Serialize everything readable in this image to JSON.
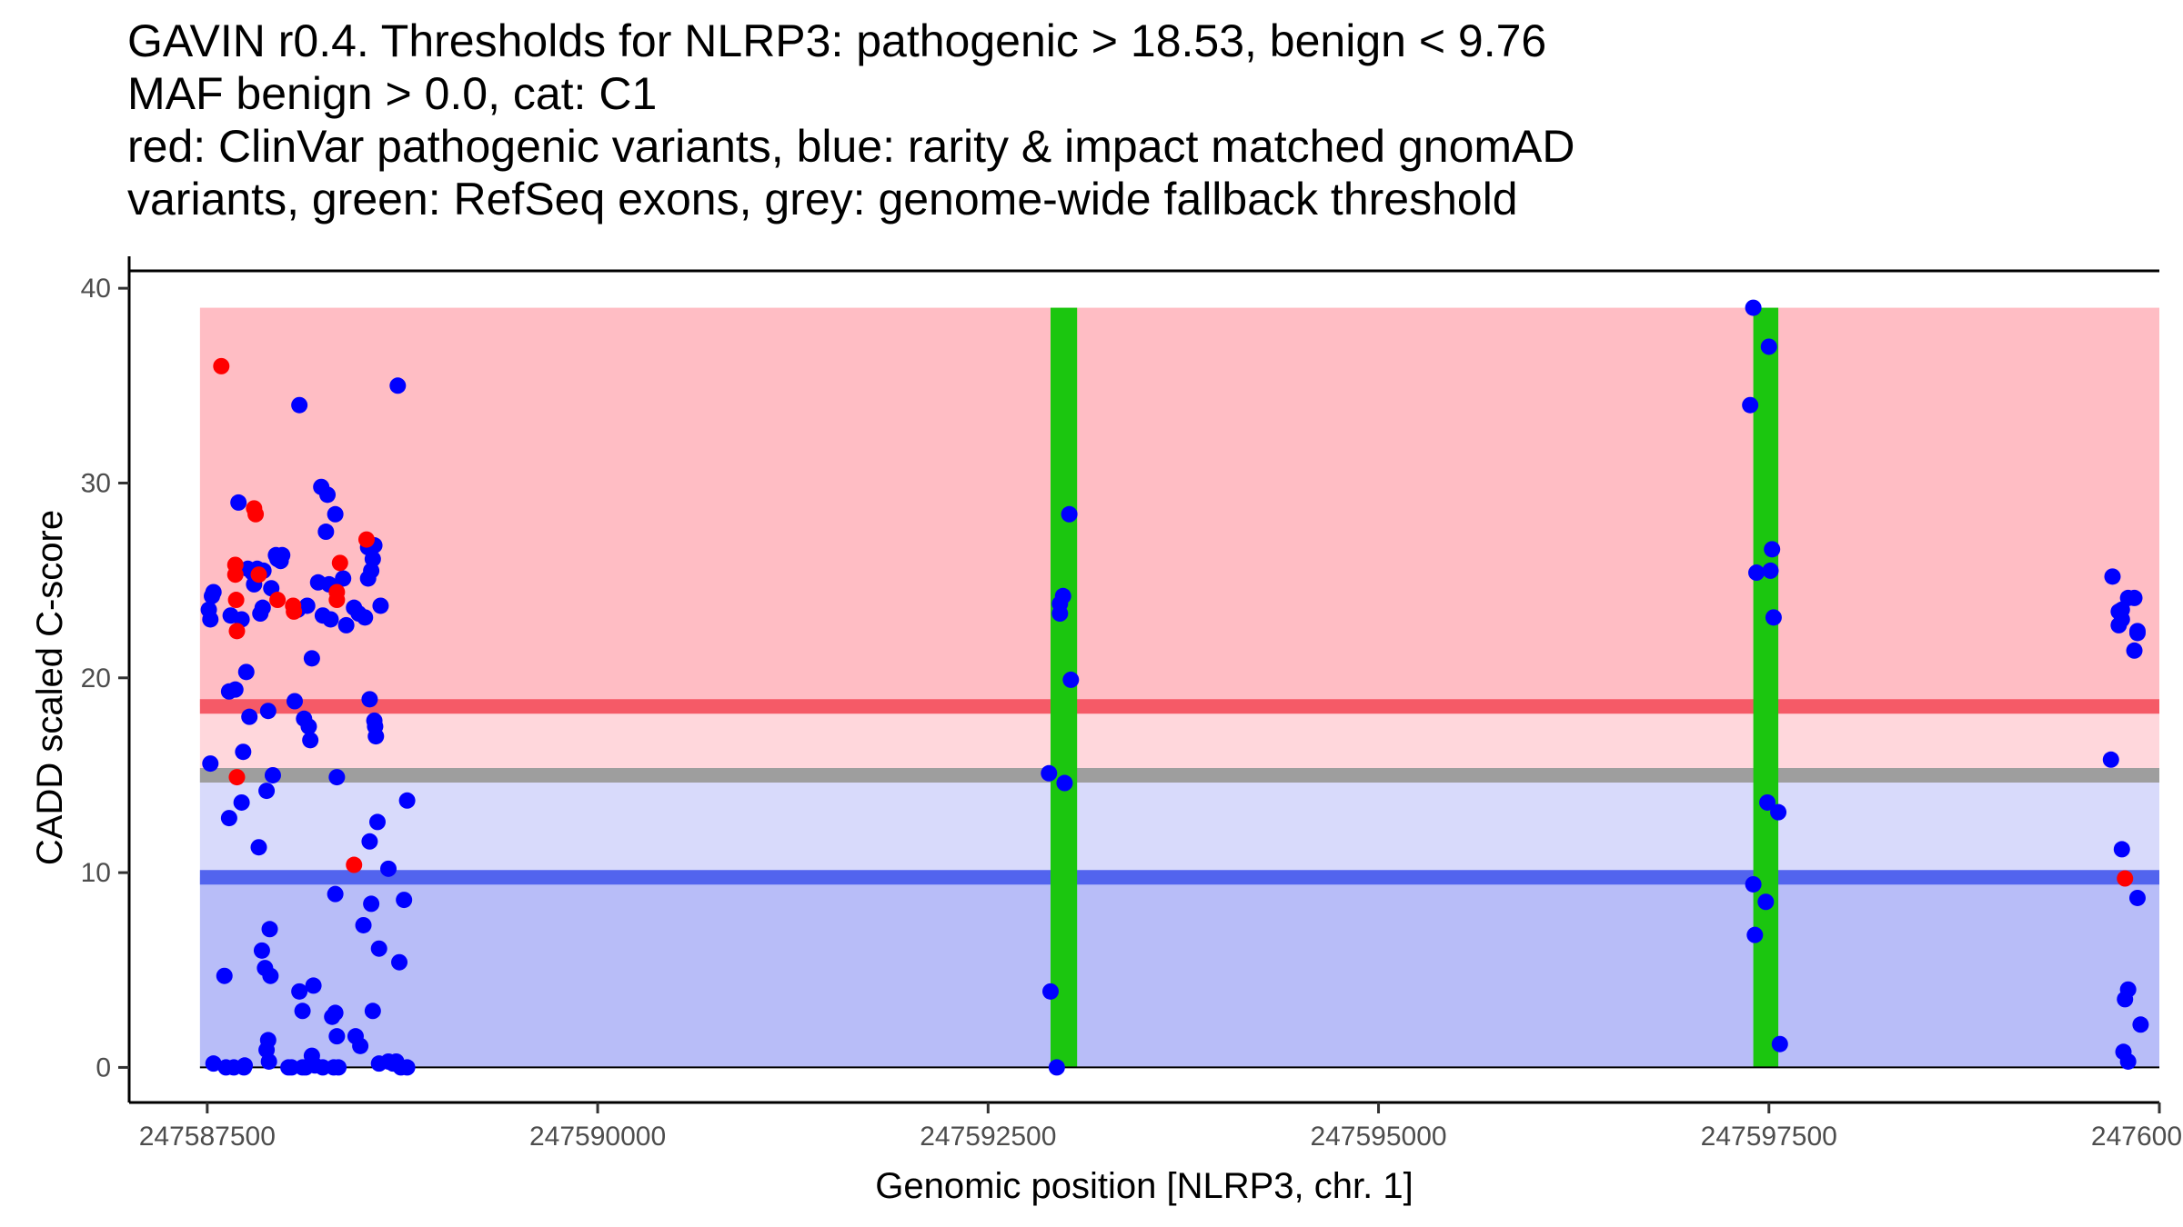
{
  "chart_data": {
    "type": "scatter",
    "title_lines": [
      "GAVIN r0.4. Thresholds for NLRP3: pathogenic > 18.53, benign < 9.76",
      "MAF benign > 0.0, cat: C1",
      "red: ClinVar pathogenic variants, blue: rarity & impact matched gnomAD",
      "variants, green: RefSeq exons, grey: genome-wide fallback threshold"
    ],
    "xlabel": "Genomic position [NLRP3, chr. 1]",
    "ylabel": "CADD scaled C-score",
    "xlim": [
      247587000,
      247600000
    ],
    "ylim": [
      -1.8,
      40.8
    ],
    "x_ticks": [
      247587500,
      247590000,
      247592500,
      247595000,
      247597500,
      247600000
    ],
    "x_tick_labels": [
      "247587500",
      "247590000",
      "247592500",
      "247595000",
      "247597500",
      "247600000"
    ],
    "y_ticks": [
      0,
      10,
      20,
      30,
      40
    ],
    "y_tick_labels": [
      "0",
      "10",
      "20",
      "30",
      "40"
    ],
    "thresholds": {
      "pathogenic": 18.53,
      "benign": 9.76,
      "fallback": 15.0,
      "maf_benign": "0.0",
      "category": "C1"
    },
    "regions": [
      {
        "name": "pathogenic-zone",
        "y0": 18.53,
        "y1": 39.0,
        "color": "#ffbdc4"
      },
      {
        "name": "fallback-pathogenic-zone",
        "y0": 15.0,
        "y1": 18.53,
        "color": "#ffd7dc"
      },
      {
        "name": "fallback-benign-zone",
        "y0": 9.76,
        "y1": 15.0,
        "color": "#d8dafb"
      },
      {
        "name": "benign-zone",
        "y0": 0.0,
        "y1": 9.76,
        "color": "#b8bdf8"
      }
    ],
    "threshold_lines": [
      {
        "name": "pathogenic-threshold-line",
        "y": 18.53,
        "color": "#f55a67"
      },
      {
        "name": "fallback-threshold-line",
        "y": 15.0,
        "color": "#9e9e9e"
      },
      {
        "name": "benign-threshold-line",
        "y": 9.76,
        "color": "#5264ee"
      }
    ],
    "exons": [
      {
        "start": 247592900,
        "end": 247593070
      },
      {
        "start": 247597400,
        "end": 247597560
      }
    ],
    "colors": {
      "pathogenic": "#ff0000",
      "population": "#0000ff",
      "exon": "#1bc60f"
    },
    "series": [
      {
        "name": "ClinVar pathogenic variants",
        "color_key": "pathogenic",
        "points": [
          [
            247587590,
            36.0
          ],
          [
            247587680,
            25.8
          ],
          [
            247587680,
            25.3
          ],
          [
            247587685,
            24.0
          ],
          [
            247587690,
            22.4
          ],
          [
            247587690,
            14.9
          ],
          [
            247587800,
            28.7
          ],
          [
            247587810,
            28.4
          ],
          [
            247587830,
            25.3
          ],
          [
            247587950,
            24.0
          ],
          [
            247588050,
            23.7
          ],
          [
            247588055,
            23.4
          ],
          [
            247588350,
            25.9
          ],
          [
            247588330,
            24.4
          ],
          [
            247588330,
            24.0
          ],
          [
            247588440,
            10.4
          ],
          [
            247588520,
            27.1
          ],
          [
            247599780,
            9.7
          ]
        ]
      },
      {
        "name": "gnomAD rarity & impact matched variants",
        "color_key": "population",
        "points": [
          [
            247587510,
            23.5
          ],
          [
            247587520,
            23.0
          ],
          [
            247587530,
            24.2
          ],
          [
            247587540,
            24.4
          ],
          [
            247587520,
            15.6
          ],
          [
            247587540,
            0.2
          ],
          [
            247587610,
            4.7
          ],
          [
            247587620,
            0.0
          ],
          [
            247587640,
            12.8
          ],
          [
            247587640,
            19.3
          ],
          [
            247587650,
            23.2
          ],
          [
            247587670,
            0.0
          ],
          [
            247587680,
            19.4
          ],
          [
            247587700,
            29.0
          ],
          [
            247587720,
            13.6
          ],
          [
            247587720,
            23.0
          ],
          [
            247587730,
            16.2
          ],
          [
            247587735,
            0.0
          ],
          [
            247587740,
            0.1
          ],
          [
            247587750,
            20.3
          ],
          [
            247587760,
            25.6
          ],
          [
            247587770,
            18.0
          ],
          [
            247587790,
            25.4
          ],
          [
            247587800,
            24.8
          ],
          [
            247587820,
            25.6
          ],
          [
            247587830,
            11.3
          ],
          [
            247587840,
            23.3
          ],
          [
            247587850,
            6.0
          ],
          [
            247587855,
            23.6
          ],
          [
            247587860,
            25.5
          ],
          [
            247587870,
            5.1
          ],
          [
            247587880,
            14.2
          ],
          [
            247587880,
            0.9
          ],
          [
            247587890,
            1.4
          ],
          [
            247587890,
            18.3
          ],
          [
            247587895,
            0.3
          ],
          [
            247587900,
            7.1
          ],
          [
            247587905,
            4.7
          ],
          [
            247587910,
            24.6
          ],
          [
            247587920,
            15.0
          ],
          [
            247587940,
            26.3
          ],
          [
            247587950,
            26.1
          ],
          [
            247587970,
            26.0
          ],
          [
            247587980,
            26.3
          ],
          [
            247588020,
            0.0
          ],
          [
            247588040,
            0.0
          ],
          [
            247588060,
            18.8
          ],
          [
            247588080,
            23.5
          ],
          [
            247588090,
            3.9
          ],
          [
            247588090,
            34.0
          ],
          [
            247588110,
            2.9
          ],
          [
            247588110,
            0.0
          ],
          [
            247588120,
            17.9
          ],
          [
            247588130,
            0.0
          ],
          [
            247588140,
            23.7
          ],
          [
            247588150,
            17.5
          ],
          [
            247588160,
            16.8
          ],
          [
            247588170,
            0.6
          ],
          [
            247588170,
            21.0
          ],
          [
            247588180,
            4.2
          ],
          [
            247588190,
            0.1
          ],
          [
            247588210,
            24.9
          ],
          [
            247588230,
            29.8
          ],
          [
            247588240,
            23.2
          ],
          [
            247588240,
            0.0
          ],
          [
            247588260,
            27.5
          ],
          [
            247588270,
            29.4
          ],
          [
            247588280,
            24.8
          ],
          [
            247588290,
            23.0
          ],
          [
            247588300,
            2.6
          ],
          [
            247588310,
            0.0
          ],
          [
            247588320,
            28.4
          ],
          [
            247588320,
            2.8
          ],
          [
            247588320,
            8.9
          ],
          [
            247588330,
            14.9
          ],
          [
            247588330,
            1.6
          ],
          [
            247588340,
            0.0
          ],
          [
            247588370,
            25.1
          ],
          [
            247588390,
            22.7
          ],
          [
            247588440,
            23.6
          ],
          [
            247588450,
            1.6
          ],
          [
            247588470,
            23.3
          ],
          [
            247588480,
            1.1
          ],
          [
            247588500,
            7.3
          ],
          [
            247588510,
            23.1
          ],
          [
            247588530,
            25.1
          ],
          [
            247588530,
            26.7
          ],
          [
            247588540,
            11.6
          ],
          [
            247588540,
            18.9
          ],
          [
            247588550,
            8.4
          ],
          [
            247588550,
            25.5
          ],
          [
            247588560,
            26.1
          ],
          [
            247588560,
            2.9
          ],
          [
            247588570,
            26.8
          ],
          [
            247588570,
            17.8
          ],
          [
            247588575,
            17.5
          ],
          [
            247588580,
            17.0
          ],
          [
            247588590,
            12.6
          ],
          [
            247588600,
            6.1
          ],
          [
            247588600,
            0.2
          ],
          [
            247588610,
            23.7
          ],
          [
            247588660,
            10.2
          ],
          [
            247588660,
            0.3
          ],
          [
            247588690,
            0.2
          ],
          [
            247588710,
            0.3
          ],
          [
            247588720,
            35.0
          ],
          [
            247588730,
            5.4
          ],
          [
            247588740,
            0.0
          ],
          [
            247588760,
            8.6
          ],
          [
            247588780,
            0.0
          ],
          [
            247588780,
            13.7
          ],
          [
            247592890,
            15.1
          ],
          [
            247592900,
            3.9
          ],
          [
            247592940,
            0.0
          ],
          [
            247592960,
            23.3
          ],
          [
            247592960,
            23.8
          ],
          [
            247592980,
            24.2
          ],
          [
            247592990,
            14.6
          ],
          [
            247593020,
            28.4
          ],
          [
            247593030,
            19.9
          ],
          [
            247597380,
            34.0
          ],
          [
            247597400,
            39.0
          ],
          [
            247597420,
            25.4
          ],
          [
            247597400,
            9.4
          ],
          [
            247597410,
            6.8
          ],
          [
            247597490,
            13.6
          ],
          [
            247597480,
            8.5
          ],
          [
            247597500,
            37.0
          ],
          [
            247597510,
            25.5
          ],
          [
            247597520,
            26.6
          ],
          [
            247597530,
            23.1
          ],
          [
            247597560,
            13.1
          ],
          [
            247597570,
            1.2
          ],
          [
            247599700,
            25.2
          ],
          [
            247599690,
            15.8
          ],
          [
            247599740,
            23.4
          ],
          [
            247599740,
            22.7
          ],
          [
            247599760,
            11.2
          ],
          [
            247599760,
            23.5
          ],
          [
            247599760,
            23.0
          ],
          [
            247599770,
            0.8
          ],
          [
            247599780,
            3.5
          ],
          [
            247599800,
            4.0
          ],
          [
            247599800,
            24.1
          ],
          [
            247599800,
            0.3
          ],
          [
            247599840,
            24.1
          ],
          [
            247599840,
            21.4
          ],
          [
            247599860,
            22.3
          ],
          [
            247599860,
            8.7
          ],
          [
            247599880,
            2.2
          ],
          [
            247599860,
            22.4
          ]
        ]
      }
    ]
  }
}
